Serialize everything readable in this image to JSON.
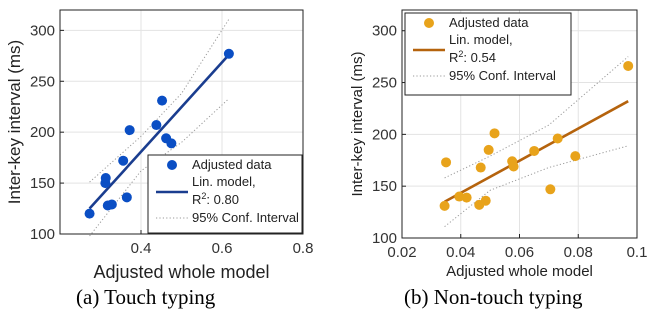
{
  "chart_data": [
    {
      "type": "scatter",
      "xlabel": "Adjusted whole model",
      "ylabel": "Inter-key interval (ms)",
      "xlim": [
        0.2,
        0.8
      ],
      "ylim": [
        100,
        320
      ],
      "xticks": [
        0.4,
        0.6,
        0.8
      ],
      "xtick_labels": [
        "0.4",
        "0.6",
        "0.8"
      ],
      "yticks": [
        100,
        150,
        200,
        250,
        300
      ],
      "ytick_labels": [
        "100",
        "150",
        "200",
        "250",
        "300"
      ],
      "grid": true,
      "legend_placement": "bottom-right",
      "legend": {
        "data_label": "Adjusted data",
        "model_label_1": "Lin. model,",
        "model_label_2_base": "R",
        "model_label_2_sup": "2",
        "model_label_2_rest": ": 0.80",
        "ci_label": "95% Conf. Interval"
      },
      "point_color": "#0A4EC4",
      "line_color": "#1A3D8F",
      "points": [
        {
          "x": 0.273,
          "y": 120
        },
        {
          "x": 0.312,
          "y": 150
        },
        {
          "x": 0.313,
          "y": 155
        },
        {
          "x": 0.318,
          "y": 128
        },
        {
          "x": 0.328,
          "y": 129
        },
        {
          "x": 0.356,
          "y": 172
        },
        {
          "x": 0.365,
          "y": 136
        },
        {
          "x": 0.372,
          "y": 202
        },
        {
          "x": 0.438,
          "y": 207
        },
        {
          "x": 0.452,
          "y": 231
        },
        {
          "x": 0.462,
          "y": 194
        },
        {
          "x": 0.475,
          "y": 189
        },
        {
          "x": 0.617,
          "y": 277
        }
      ],
      "fit_line": [
        {
          "x": 0.273,
          "y": 125
        },
        {
          "x": 0.617,
          "y": 276
        }
      ],
      "ci_upper": [
        {
          "x": 0.273,
          "y": 151
        },
        {
          "x": 0.4,
          "y": 196
        },
        {
          "x": 0.5,
          "y": 238
        },
        {
          "x": 0.617,
          "y": 311
        }
      ],
      "ci_lower": [
        {
          "x": 0.273,
          "y": 98
        },
        {
          "x": 0.4,
          "y": 162
        },
        {
          "x": 0.5,
          "y": 190
        },
        {
          "x": 0.617,
          "y": 233
        }
      ],
      "caption": "(a)  Touch typing"
    },
    {
      "type": "scatter",
      "xlabel": "Adjusted whole model",
      "ylabel": "Inter-key interval (ms)",
      "xlim": [
        0.02,
        0.1
      ],
      "ylim": [
        100,
        320
      ],
      "xticks": [
        0.02,
        0.04,
        0.06,
        0.08,
        0.1
      ],
      "xtick_labels": [
        "0.02",
        "0.04",
        "0.06",
        "0.08",
        "0.1"
      ],
      "yticks": [
        100,
        150,
        200,
        250,
        300
      ],
      "ytick_labels": [
        "100",
        "150",
        "200",
        "250",
        "300"
      ],
      "grid": true,
      "legend_placement": "top-left",
      "legend": {
        "data_label": "Adjusted data",
        "model_label_1": "Lin. model,",
        "model_label_2_base": "R",
        "model_label_2_sup": "2",
        "model_label_2_rest": ": 0.54",
        "ci_label": "95% Conf. Interval"
      },
      "point_color": "#E8A31B",
      "line_color": "#B5630D",
      "points": [
        {
          "x": 0.0345,
          "y": 131
        },
        {
          "x": 0.035,
          "y": 173
        },
        {
          "x": 0.0395,
          "y": 140
        },
        {
          "x": 0.042,
          "y": 139
        },
        {
          "x": 0.0463,
          "y": 132
        },
        {
          "x": 0.0468,
          "y": 168
        },
        {
          "x": 0.0485,
          "y": 136
        },
        {
          "x": 0.0495,
          "y": 185
        },
        {
          "x": 0.0515,
          "y": 201
        },
        {
          "x": 0.0575,
          "y": 174
        },
        {
          "x": 0.058,
          "y": 169
        },
        {
          "x": 0.065,
          "y": 184
        },
        {
          "x": 0.0705,
          "y": 147
        },
        {
          "x": 0.073,
          "y": 196
        },
        {
          "x": 0.079,
          "y": 179
        },
        {
          "x": 0.097,
          "y": 266
        }
      ],
      "fit_line": [
        {
          "x": 0.0345,
          "y": 135
        },
        {
          "x": 0.097,
          "y": 232
        }
      ],
      "ci_upper": [
        {
          "x": 0.0345,
          "y": 158
        },
        {
          "x": 0.05,
          "y": 179
        },
        {
          "x": 0.07,
          "y": 209
        },
        {
          "x": 0.097,
          "y": 275
        }
      ],
      "ci_lower": [
        {
          "x": 0.0345,
          "y": 111
        },
        {
          "x": 0.05,
          "y": 146
        },
        {
          "x": 0.07,
          "y": 168
        },
        {
          "x": 0.097,
          "y": 189
        }
      ],
      "caption": "(b)  Non-touch typing"
    }
  ]
}
